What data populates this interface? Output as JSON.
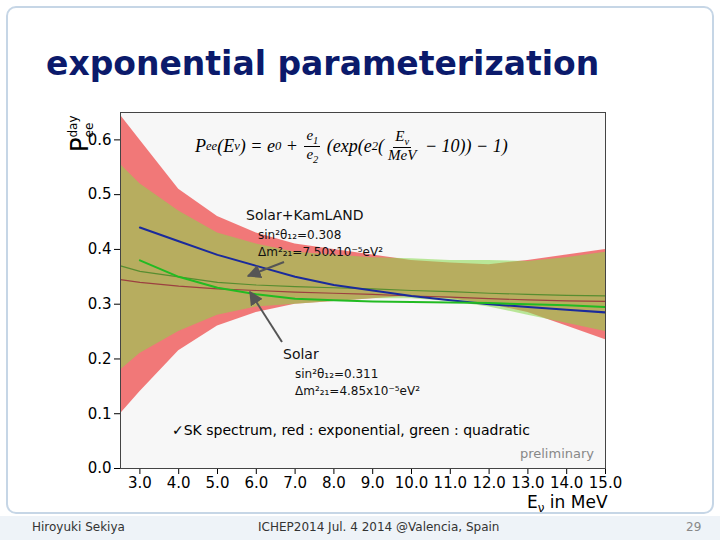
{
  "slide": {
    "title": "exponential parameterization",
    "footer": {
      "author": "Hiroyuki Sekiya",
      "event": "ICHEP2014  Jul. 4 2014  @Valencia, Spain",
      "page": "29"
    }
  },
  "chart_data": {
    "type": "line",
    "formula": [
      "P",
      {
        "sub": "ee"
      },
      "(E",
      {
        "sub": "ν"
      },
      ") = e",
      {
        "sub": "0"
      },
      " + ",
      {
        "frac": [
          [
            "e",
            {
              "sub": "1"
            }
          ],
          [
            "e",
            {
              "sub": "2"
            }
          ]
        ]
      },
      " (exp(e",
      {
        "sub": "2"
      },
      "(",
      {
        "frac": [
          [
            "E",
            {
              "sub": "ν"
            }
          ],
          [
            "MeV"
          ]
        ]
      },
      " − 10)) − 1)"
    ],
    "ylabel": "P",
    "ylabel_sup": "day",
    "ylabel_sub": "ee",
    "xlabel": "E",
    "xlabel_sub": "ν",
    "xlabel_rest": " in MeV",
    "x": [
      2.5,
      3,
      4,
      5,
      6,
      7,
      8,
      9,
      10,
      11,
      12,
      13,
      14,
      15
    ],
    "xlim": [
      2.5,
      15.0
    ],
    "ylim": [
      0,
      0.65
    ],
    "xticks": [
      {
        "value": 3,
        "label": "3.0"
      },
      {
        "value": 4,
        "label": "4.0"
      },
      {
        "value": 5,
        "label": "5.0"
      },
      {
        "value": 6,
        "label": "6.0"
      },
      {
        "value": 7,
        "label": "7.0"
      },
      {
        "value": 8,
        "label": "8.0"
      },
      {
        "value": 9,
        "label": "9.0"
      },
      {
        "value": 10,
        "label": "10.0"
      },
      {
        "value": 11,
        "label": "11.0"
      },
      {
        "value": 12,
        "label": "12.0"
      },
      {
        "value": 13,
        "label": "13.0"
      },
      {
        "value": 14,
        "label": "14.0"
      },
      {
        "value": 15,
        "label": "15.0"
      }
    ],
    "yticks": [
      {
        "value": 0,
        "label": "0.0"
      },
      {
        "value": 0.1,
        "label": "0.1"
      },
      {
        "value": 0.2,
        "label": "0.2"
      },
      {
        "value": 0.3,
        "label": "0.3"
      },
      {
        "value": 0.4,
        "label": "0.4"
      },
      {
        "value": 0.5,
        "label": "0.5"
      },
      {
        "value": 0.6,
        "label": "0.6"
      }
    ],
    "grid": false,
    "series": [
      {
        "name": "exponential",
        "type": "band",
        "color": "#f06262",
        "values": [
          0.345,
          0.34,
          0.333,
          0.328,
          0.325,
          0.322,
          0.32,
          0.318,
          0.315,
          0.313,
          0.31,
          0.308,
          0.306,
          0.305
        ],
        "lower": [
          0.1,
          0.14,
          0.215,
          0.26,
          0.285,
          0.3,
          0.305,
          0.31,
          0.315,
          0.31,
          0.3,
          0.285,
          0.26,
          0.235
        ],
        "upper": [
          0.645,
          0.6,
          0.51,
          0.46,
          0.43,
          0.41,
          0.4,
          0.39,
          0.38,
          0.375,
          0.372,
          0.38,
          0.39,
          0.4
        ]
      },
      {
        "name": "quadratic",
        "type": "band",
        "color": "#86d94a",
        "values": [
          0.37,
          0.36,
          0.35,
          0.34,
          0.335,
          0.332,
          0.33,
          0.328,
          0.325,
          0.323,
          0.32,
          0.318,
          0.316,
          0.315
        ],
        "lower": [
          0.18,
          0.21,
          0.25,
          0.28,
          0.295,
          0.3,
          0.305,
          0.31,
          0.31,
          0.305,
          0.295,
          0.28,
          0.265,
          0.25
        ],
        "upper": [
          0.555,
          0.52,
          0.47,
          0.43,
          0.41,
          0.395,
          0.39,
          0.385,
          0.383,
          0.38,
          0.38,
          0.378,
          0.385,
          0.395
        ]
      },
      {
        "name": "Solar+KamLAND",
        "type": "line",
        "color": "#1a2a9c",
        "line_style": "solid",
        "values": [
          null,
          0.44,
          0.415,
          0.39,
          0.37,
          0.35,
          0.335,
          0.325,
          0.315,
          0.307,
          0.3,
          0.295,
          0.29,
          0.285
        ]
      },
      {
        "name": "Solar",
        "type": "line",
        "color": "#22bb22",
        "line_style": "solid",
        "values": [
          null,
          0.38,
          0.35,
          0.33,
          0.318,
          0.31,
          0.307,
          0.305,
          0.304,
          0.303,
          0.302,
          0.3,
          0.298,
          0.295
        ]
      }
    ],
    "annotations": [
      {
        "label": "Solar+KamLAND",
        "lines": [
          "sin²θ₁₂=0.308",
          "Δm²₂₁=7.50x10⁻⁵eV²"
        ]
      },
      {
        "label": "Solar",
        "lines": [
          "sin²θ₁₂=0.311",
          "Δm²₂₁=4.85x10⁻⁵eV²"
        ]
      }
    ],
    "note": "✓SK spectrum, red : exponential, green : quadratic",
    "watermark": "preliminary"
  }
}
